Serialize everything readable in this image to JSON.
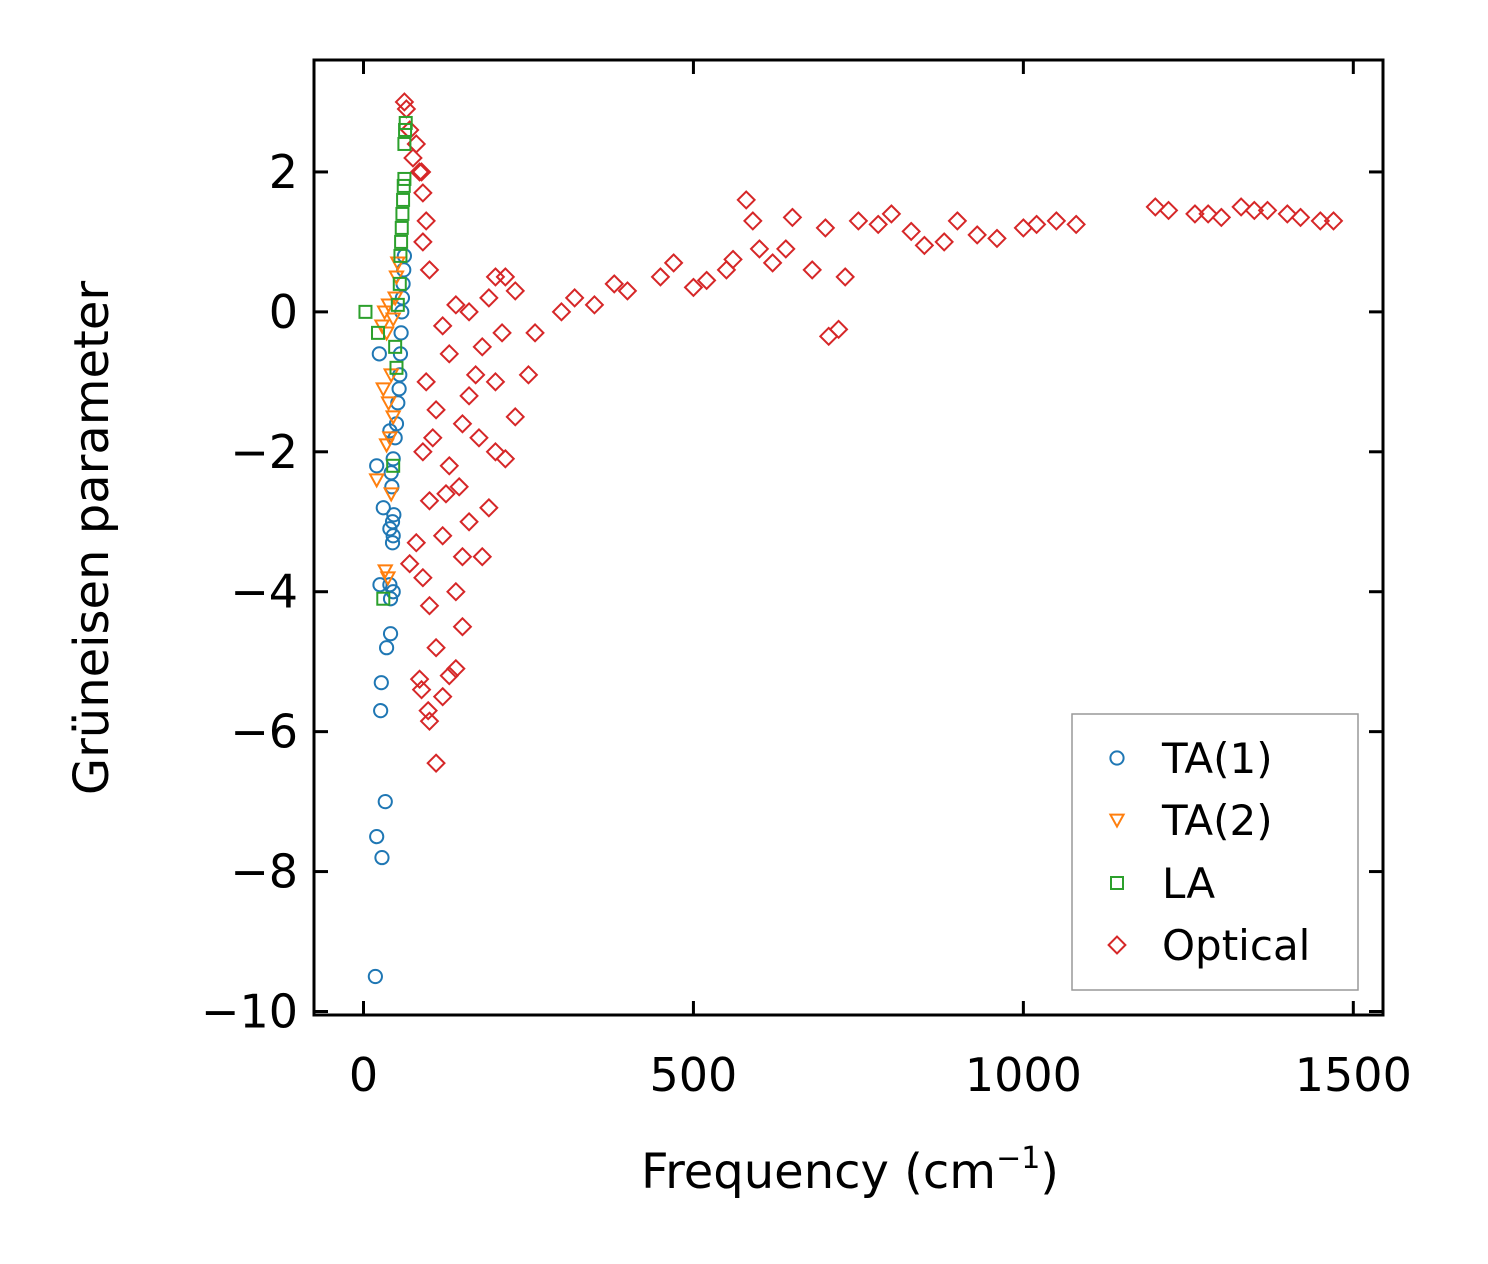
{
  "chart_data": {
    "type": "scatter",
    "xlabel": "Frequency (cm",
    "xlabel_superscript": "−1",
    "xlabel_suffix": ")",
    "ylabel": "Grüneisen parameter",
    "xlim": [
      -75,
      1545
    ],
    "ylim": [
      -10.05,
      3.6
    ],
    "x_ticks": [
      0,
      500,
      1000,
      1500
    ],
    "x_tick_labels": [
      "0",
      "500",
      "1000",
      "1500"
    ],
    "y_ticks": [
      2,
      0,
      -2,
      -4,
      -6,
      -8,
      -10
    ],
    "y_tick_labels": [
      "2",
      "0",
      "−2",
      "−4",
      "−6",
      "−8",
      "−10"
    ],
    "grid": false,
    "legend_position": "bottom-right",
    "series": [
      {
        "name": "TA(1)",
        "marker": "circle",
        "color": "#1f77b4",
        "points": [
          [
            18,
            -9.5
          ],
          [
            20,
            -7.5
          ],
          [
            28,
            -7.8
          ],
          [
            33,
            -7.0
          ],
          [
            26,
            -5.7
          ],
          [
            27,
            -5.3
          ],
          [
            35,
            -4.8
          ],
          [
            41,
            -4.6
          ],
          [
            41,
            -4.1
          ],
          [
            45,
            -4.0
          ],
          [
            25,
            -3.9
          ],
          [
            40,
            -3.9
          ],
          [
            44,
            -3.3
          ],
          [
            45,
            -3.2
          ],
          [
            40,
            -3.1
          ],
          [
            44,
            -3.0
          ],
          [
            46,
            -2.9
          ],
          [
            30,
            -2.8
          ],
          [
            43,
            -2.5
          ],
          [
            42,
            -2.3
          ],
          [
            20,
            -2.2
          ],
          [
            45,
            -2.1
          ],
          [
            48,
            -1.8
          ],
          [
            50,
            -1.6
          ],
          [
            40,
            -1.7
          ],
          [
            52,
            -1.3
          ],
          [
            54,
            -1.1
          ],
          [
            55,
            -0.9
          ],
          [
            56,
            -0.6
          ],
          [
            57,
            -0.3
          ],
          [
            58,
            0.0
          ],
          [
            59,
            0.2
          ],
          [
            60,
            0.4
          ],
          [
            61,
            0.6
          ],
          [
            62,
            0.8
          ],
          [
            24,
            -0.6
          ]
        ]
      },
      {
        "name": "TA(2)",
        "marker": "triangle-down",
        "color": "#ff7f0e",
        "points": [
          [
            20,
            -2.4
          ],
          [
            33,
            -3.7
          ],
          [
            37,
            -3.8
          ],
          [
            35,
            -1.9
          ],
          [
            40,
            -1.8
          ],
          [
            30,
            -1.1
          ],
          [
            38,
            -1.3
          ],
          [
            42,
            -0.9
          ],
          [
            35,
            -0.3
          ],
          [
            28,
            -0.2
          ],
          [
            45,
            -0.1
          ],
          [
            32,
            0.0
          ],
          [
            38,
            0.1
          ],
          [
            48,
            0.2
          ],
          [
            50,
            0.5
          ],
          [
            52,
            0.7
          ],
          [
            42,
            -2.6
          ],
          [
            45,
            -1.5
          ]
        ]
      },
      {
        "name": "LA",
        "marker": "square",
        "color": "#2ca02c",
        "points": [
          [
            3,
            0.0
          ],
          [
            22,
            -0.3
          ],
          [
            30,
            -4.1
          ],
          [
            45,
            -2.2
          ],
          [
            48,
            -0.5
          ],
          [
            50,
            -0.8
          ],
          [
            52,
            0.1
          ],
          [
            55,
            0.4
          ],
          [
            56,
            0.8
          ],
          [
            57,
            1.0
          ],
          [
            58,
            1.2
          ],
          [
            59,
            1.4
          ],
          [
            60,
            1.6
          ],
          [
            61,
            1.8
          ],
          [
            62,
            1.9
          ],
          [
            62,
            2.4
          ],
          [
            63,
            2.6
          ],
          [
            64,
            2.7
          ]
        ]
      },
      {
        "name": "Optical",
        "marker": "diamond",
        "color": "#d62728",
        "points": [
          [
            110,
            -6.45
          ],
          [
            100,
            -5.85
          ],
          [
            98,
            -5.7
          ],
          [
            120,
            -5.5
          ],
          [
            88,
            -5.4
          ],
          [
            85,
            -5.25
          ],
          [
            130,
            -5.2
          ],
          [
            140,
            -5.1
          ],
          [
            110,
            -4.8
          ],
          [
            150,
            -4.5
          ],
          [
            100,
            -4.2
          ],
          [
            140,
            -4.0
          ],
          [
            90,
            -3.8
          ],
          [
            150,
            -3.5
          ],
          [
            180,
            -3.5
          ],
          [
            70,
            -3.6
          ],
          [
            80,
            -3.3
          ],
          [
            160,
            -3.0
          ],
          [
            120,
            -3.2
          ],
          [
            190,
            -2.8
          ],
          [
            100,
            -2.7
          ],
          [
            145,
            -2.5
          ],
          [
            200,
            -2.0
          ],
          [
            215,
            -2.1
          ],
          [
            130,
            -2.2
          ],
          [
            90,
            -2.0
          ],
          [
            175,
            -1.8
          ],
          [
            230,
            -1.5
          ],
          [
            110,
            -1.4
          ],
          [
            160,
            -1.2
          ],
          [
            95,
            -1.0
          ],
          [
            200,
            -1.0
          ],
          [
            250,
            -0.9
          ],
          [
            130,
            -0.6
          ],
          [
            180,
            -0.5
          ],
          [
            210,
            -0.3
          ],
          [
            260,
            -0.3
          ],
          [
            120,
            -0.2
          ],
          [
            160,
            0.0
          ],
          [
            300,
            0.0
          ],
          [
            140,
            0.1
          ],
          [
            190,
            0.2
          ],
          [
            230,
            0.3
          ],
          [
            200,
            0.5
          ],
          [
            215,
            0.5
          ],
          [
            100,
            0.6
          ],
          [
            90,
            1.0
          ],
          [
            95,
            1.3
          ],
          [
            90,
            1.7
          ],
          [
            88,
            2.0
          ],
          [
            80,
            2.4
          ],
          [
            70,
            2.6
          ],
          [
            65,
            2.9
          ],
          [
            62,
            3.0
          ],
          [
            85,
            2.0
          ],
          [
            75,
            2.2
          ],
          [
            105,
            -1.8
          ],
          [
            125,
            -2.6
          ],
          [
            150,
            -1.6
          ],
          [
            170,
            -0.9
          ],
          [
            350,
            0.1
          ],
          [
            400,
            0.3
          ],
          [
            450,
            0.5
          ],
          [
            500,
            0.35
          ],
          [
            550,
            0.6
          ],
          [
            580,
            1.6
          ],
          [
            600,
            0.9
          ],
          [
            640,
            0.9
          ],
          [
            650,
            1.35
          ],
          [
            700,
            1.2
          ],
          [
            705,
            -0.35
          ],
          [
            720,
            -0.25
          ],
          [
            750,
            1.3
          ],
          [
            800,
            1.4
          ],
          [
            850,
            0.95
          ],
          [
            900,
            1.3
          ],
          [
            930,
            1.1
          ],
          [
            1000,
            1.2
          ],
          [
            1050,
            1.3
          ],
          [
            1080,
            1.25
          ],
          [
            1200,
            1.5
          ],
          [
            1260,
            1.4
          ],
          [
            1300,
            1.35
          ],
          [
            1330,
            1.5
          ],
          [
            1370,
            1.45
          ],
          [
            1420,
            1.35
          ],
          [
            1470,
            1.3
          ],
          [
            320,
            0.2
          ],
          [
            380,
            0.4
          ],
          [
            470,
            0.7
          ],
          [
            520,
            0.45
          ],
          [
            560,
            0.75
          ],
          [
            590,
            1.3
          ],
          [
            620,
            0.7
          ],
          [
            680,
            0.6
          ],
          [
            730,
            0.5
          ],
          [
            780,
            1.25
          ],
          [
            830,
            1.15
          ],
          [
            880,
            1.0
          ],
          [
            960,
            1.05
          ],
          [
            1020,
            1.25
          ],
          [
            1220,
            1.45
          ],
          [
            1280,
            1.4
          ],
          [
            1350,
            1.45
          ],
          [
            1400,
            1.4
          ],
          [
            1450,
            1.3
          ]
        ]
      }
    ]
  }
}
